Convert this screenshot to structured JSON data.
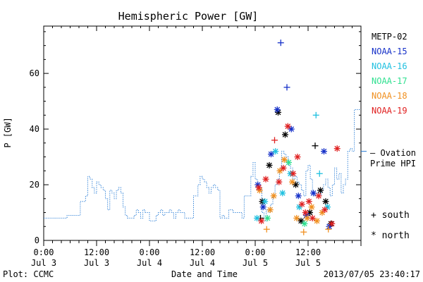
{
  "chart_data": {
    "type": "scatter",
    "title": "Hemispheric Power [GW]",
    "ylabel": "P [GW]",
    "xlabel": "Date and Time",
    "ylim": [
      0,
      77
    ],
    "xlim_hours": [
      0,
      72
    ],
    "y_ticks": [
      0,
      20,
      40,
      60
    ],
    "x_ticks": [
      {
        "hour": 0,
        "top": "0:00",
        "bottom": "Jul 3"
      },
      {
        "hour": 12,
        "top": "12:00",
        "bottom": "Jul 3"
      },
      {
        "hour": 24,
        "top": "0:00",
        "bottom": "Jul 4"
      },
      {
        "hour": 36,
        "top": "12:00",
        "bottom": "Jul 4"
      },
      {
        "hour": 48,
        "top": "0:00",
        "bottom": "Jul 5"
      },
      {
        "hour": 60,
        "top": "12:00",
        "bottom": "Jul 5"
      }
    ],
    "grid": false,
    "legend_position": "right",
    "footer_left": "Plot: CCMC",
    "footer_right": "2013/07/05 23:40:17",
    "ovation_label_line1": "— Ovation",
    "ovation_label_line2": "Prime HPI",
    "ovation_color": "#1f77d4",
    "ovation_series": {
      "name": "Ovation Prime HPI",
      "x": [
        0,
        5,
        5.3,
        8,
        8.3,
        9.5,
        10,
        10.5,
        11,
        11.5,
        12,
        12.5,
        13,
        13.5,
        14,
        14.5,
        15,
        15.5,
        16,
        16.5,
        17,
        17.5,
        18,
        18.5,
        19,
        20,
        20.5,
        21,
        21.5,
        22,
        22.5,
        23,
        24,
        25,
        25.5,
        26,
        26.5,
        27,
        27.5,
        28,
        28.5,
        29,
        29.5,
        30,
        30.5,
        31,
        32,
        33,
        34,
        35,
        35.5,
        36,
        36.5,
        37,
        37.5,
        38,
        38.5,
        39,
        39.5,
        40,
        40.5,
        41,
        42,
        43,
        44,
        45,
        45.5,
        46,
        47,
        47.5,
        48,
        48.5,
        49,
        49.5,
        50,
        50.5,
        51,
        51.5,
        52,
        52.5,
        53,
        53.5,
        54,
        54.5,
        55,
        55.5,
        56,
        56.5,
        57,
        57.5,
        58,
        58.5,
        59,
        59.5,
        60,
        60.5,
        61,
        61.5,
        62,
        62.5,
        63,
        63.5,
        64,
        64.5,
        65,
        65.5,
        66,
        66.5,
        67,
        67.5,
        68,
        68.5,
        69,
        69.5,
        70,
        70.5,
        71,
        71.5,
        72
      ],
      "values": [
        8,
        8,
        9,
        9,
        14,
        16,
        23,
        22,
        19,
        17,
        21,
        20,
        19,
        18,
        15,
        11,
        18,
        17,
        15,
        18,
        19,
        17,
        12,
        9,
        8,
        8,
        9,
        11,
        10,
        8,
        11,
        10,
        7,
        7,
        9,
        10,
        11,
        9,
        10,
        10,
        11,
        10,
        8,
        10,
        11,
        10,
        8,
        8,
        16,
        20,
        23,
        22,
        21,
        19,
        17,
        19,
        20,
        19,
        18,
        8,
        9,
        8,
        11,
        10,
        10,
        8,
        16,
        16,
        23,
        28,
        22,
        18,
        19,
        10,
        7,
        11,
        10,
        13,
        16,
        20,
        22,
        25,
        32,
        31,
        30,
        27,
        26,
        22,
        23,
        21,
        20,
        18,
        16,
        25,
        27,
        22,
        17,
        16,
        17,
        16,
        18,
        20,
        22,
        19,
        16,
        20,
        26,
        22,
        24,
        17,
        20,
        22,
        32,
        33,
        32,
        47,
        47,
        47,
        47
      ]
    },
    "legend": [
      {
        "name": "METP-02",
        "color": "#000000"
      },
      {
        "name": "NOAA-15",
        "color": "#1530c8"
      },
      {
        "name": "NOAA-16",
        "color": "#20c0e0"
      },
      {
        "name": "NOAA-17",
        "color": "#30e090"
      },
      {
        "name": "NOAA-18",
        "color": "#f09020"
      },
      {
        "name": "NOAA-19",
        "color": "#e02020"
      }
    ],
    "marker_legend": [
      {
        "symbol": "+",
        "label": "south"
      },
      {
        "symbol": "*",
        "label": "north"
      }
    ],
    "points": [
      {
        "x": 49.2,
        "y": 8,
        "sat": "METP-02",
        "m": "+"
      },
      {
        "x": 49.6,
        "y": 14,
        "sat": "METP-02",
        "m": "*"
      },
      {
        "x": 51.2,
        "y": 27,
        "sat": "METP-02",
        "m": "*"
      },
      {
        "x": 53.2,
        "y": 46,
        "sat": "METP-02",
        "m": "*"
      },
      {
        "x": 54.8,
        "y": 38,
        "sat": "METP-02",
        "m": "*"
      },
      {
        "x": 57.2,
        "y": 20,
        "sat": "METP-02",
        "m": "*"
      },
      {
        "x": 58.4,
        "y": 7,
        "sat": "METP-02",
        "m": "*"
      },
      {
        "x": 60.4,
        "y": 10,
        "sat": "METP-02",
        "m": "*"
      },
      {
        "x": 61.6,
        "y": 34,
        "sat": "METP-02",
        "m": "+"
      },
      {
        "x": 62.8,
        "y": 18,
        "sat": "METP-02",
        "m": "*"
      },
      {
        "x": 64.0,
        "y": 14,
        "sat": "METP-02",
        "m": "*"
      },
      {
        "x": 65.2,
        "y": 6,
        "sat": "METP-02",
        "m": "*"
      },
      {
        "x": 48.6,
        "y": 20,
        "sat": "NOAA-15",
        "m": "*"
      },
      {
        "x": 49.8,
        "y": 12,
        "sat": "NOAA-15",
        "m": "*"
      },
      {
        "x": 51.6,
        "y": 31,
        "sat": "NOAA-15",
        "m": "*"
      },
      {
        "x": 53.0,
        "y": 47,
        "sat": "NOAA-15",
        "m": "*"
      },
      {
        "x": 53.8,
        "y": 71,
        "sat": "NOAA-15",
        "m": "+"
      },
      {
        "x": 55.2,
        "y": 55,
        "sat": "NOAA-15",
        "m": "+"
      },
      {
        "x": 56.2,
        "y": 40,
        "sat": "NOAA-15",
        "m": "*"
      },
      {
        "x": 57.8,
        "y": 16,
        "sat": "NOAA-15",
        "m": "*"
      },
      {
        "x": 59.6,
        "y": 9,
        "sat": "NOAA-15",
        "m": "*"
      },
      {
        "x": 61.2,
        "y": 17,
        "sat": "NOAA-15",
        "m": "*"
      },
      {
        "x": 63.6,
        "y": 32,
        "sat": "NOAA-15",
        "m": "*"
      },
      {
        "x": 64.8,
        "y": 5,
        "sat": "NOAA-15",
        "m": "*"
      },
      {
        "x": 48.4,
        "y": 8,
        "sat": "NOAA-16",
        "m": "*"
      },
      {
        "x": 50.2,
        "y": 14,
        "sat": "NOAA-16",
        "m": "*"
      },
      {
        "x": 52.6,
        "y": 32,
        "sat": "NOAA-16",
        "m": "*"
      },
      {
        "x": 54.2,
        "y": 17,
        "sat": "NOAA-16",
        "m": "*"
      },
      {
        "x": 56.0,
        "y": 24,
        "sat": "NOAA-16",
        "m": "*"
      },
      {
        "x": 58.0,
        "y": 12,
        "sat": "NOAA-16",
        "m": "*"
      },
      {
        "x": 61.8,
        "y": 45,
        "sat": "NOAA-16",
        "m": "+"
      },
      {
        "x": 62.6,
        "y": 24,
        "sat": "NOAA-16",
        "m": "+"
      },
      {
        "x": 64.4,
        "y": 12,
        "sat": "NOAA-16",
        "m": "*"
      },
      {
        "x": 50.8,
        "y": 8,
        "sat": "NOAA-17",
        "m": "*"
      },
      {
        "x": 55.6,
        "y": 28,
        "sat": "NOAA-17",
        "m": "*"
      },
      {
        "x": 59.2,
        "y": 6,
        "sat": "NOAA-17",
        "m": "*"
      },
      {
        "x": 49.0,
        "y": 18,
        "sat": "NOAA-18",
        "m": "*"
      },
      {
        "x": 50.6,
        "y": 4,
        "sat": "NOAA-18",
        "m": "+"
      },
      {
        "x": 51.4,
        "y": 11,
        "sat": "NOAA-18",
        "m": "*"
      },
      {
        "x": 52.2,
        "y": 16,
        "sat": "NOAA-18",
        "m": "*"
      },
      {
        "x": 53.6,
        "y": 25,
        "sat": "NOAA-18",
        "m": "*"
      },
      {
        "x": 54.6,
        "y": 29,
        "sat": "NOAA-18",
        "m": "*"
      },
      {
        "x": 56.4,
        "y": 21,
        "sat": "NOAA-18",
        "m": "*"
      },
      {
        "x": 57.4,
        "y": 8,
        "sat": "NOAA-18",
        "m": "*"
      },
      {
        "x": 59.0,
        "y": 3,
        "sat": "NOAA-18",
        "m": "+"
      },
      {
        "x": 59.8,
        "y": 8,
        "sat": "NOAA-18",
        "m": "*"
      },
      {
        "x": 60.8,
        "y": 12,
        "sat": "NOAA-18",
        "m": "*"
      },
      {
        "x": 62.0,
        "y": 7,
        "sat": "NOAA-18",
        "m": "*"
      },
      {
        "x": 63.2,
        "y": 10,
        "sat": "NOAA-18",
        "m": "*"
      },
      {
        "x": 64.6,
        "y": 4,
        "sat": "NOAA-18",
        "m": "+"
      },
      {
        "x": 48.8,
        "y": 19,
        "sat": "NOAA-19",
        "m": "*"
      },
      {
        "x": 49.4,
        "y": 7,
        "sat": "NOAA-19",
        "m": "*"
      },
      {
        "x": 50.4,
        "y": 22,
        "sat": "NOAA-19",
        "m": "*"
      },
      {
        "x": 52.4,
        "y": 36,
        "sat": "NOAA-19",
        "m": "+"
      },
      {
        "x": 53.4,
        "y": 21,
        "sat": "NOAA-19",
        "m": "*"
      },
      {
        "x": 54.4,
        "y": 26,
        "sat": "NOAA-19",
        "m": "*"
      },
      {
        "x": 55.4,
        "y": 41,
        "sat": "NOAA-19",
        "m": "*"
      },
      {
        "x": 56.6,
        "y": 24,
        "sat": "NOAA-19",
        "m": "*"
      },
      {
        "x": 57.6,
        "y": 30,
        "sat": "NOAA-19",
        "m": "*"
      },
      {
        "x": 58.6,
        "y": 13,
        "sat": "NOAA-19",
        "m": "*"
      },
      {
        "x": 59.4,
        "y": 10,
        "sat": "NOAA-19",
        "m": "*"
      },
      {
        "x": 60.2,
        "y": 14,
        "sat": "NOAA-19",
        "m": "*"
      },
      {
        "x": 61.0,
        "y": 8,
        "sat": "NOAA-19",
        "m": "*"
      },
      {
        "x": 62.4,
        "y": 16,
        "sat": "NOAA-19",
        "m": "*"
      },
      {
        "x": 63.8,
        "y": 11,
        "sat": "NOAA-19",
        "m": "*"
      },
      {
        "x": 65.4,
        "y": 6,
        "sat": "NOAA-19",
        "m": "*"
      },
      {
        "x": 66.6,
        "y": 33,
        "sat": "NOAA-19",
        "m": "*"
      }
    ]
  }
}
